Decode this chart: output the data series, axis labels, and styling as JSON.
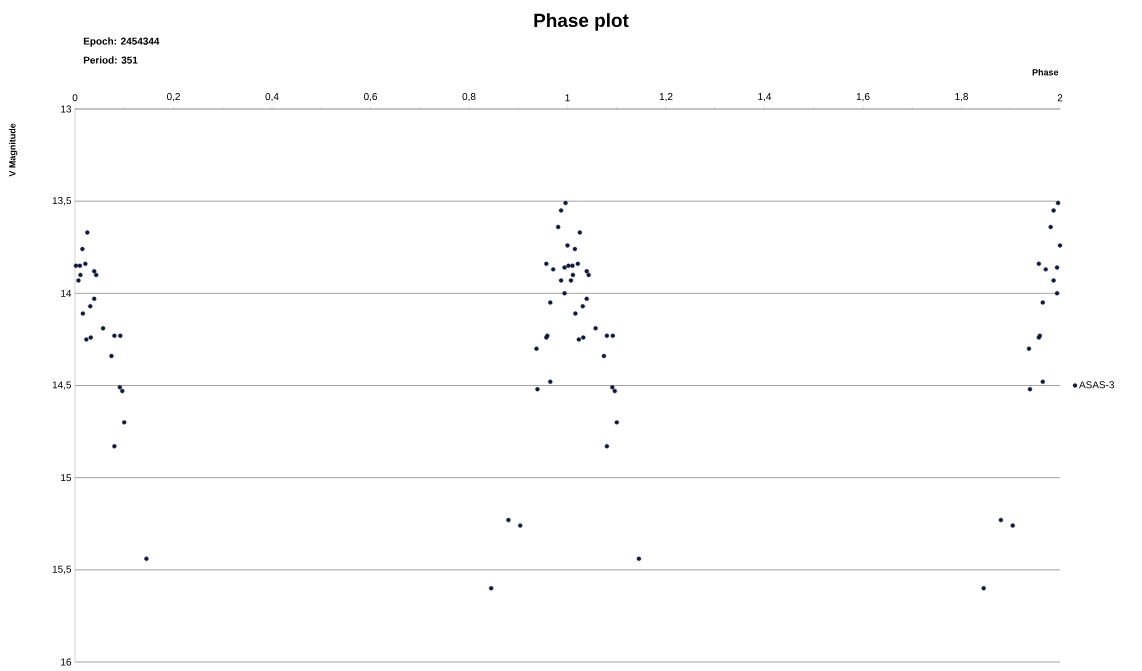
{
  "chart_data": {
    "type": "scatter",
    "title": "Phase plot",
    "xlabel": "Phase",
    "ylabel": "V Magnitude",
    "annotations": [
      "Epoch: 2454344",
      "Period: 351"
    ],
    "series": [
      {
        "name": "ASAS-3",
        "color": "#0d1b3e",
        "x": [
          0.025,
          0.015,
          0.021,
          0.002,
          0.01,
          0.011,
          0.007,
          0.039,
          0.043,
          0.039,
          0.031,
          0.016,
          0.057,
          0.08,
          0.092,
          0.023,
          0.032,
          0.074,
          0.091,
          0.096,
          0.1,
          0.08,
          0.145,
          0.996,
          0.987,
          0.981,
          1.0,
          0.957,
          0.971,
          0.994,
          0.987,
          0.994,
          0.965,
          0.957,
          0.959,
          0.937,
          0.965,
          0.939,
          0.88,
          0.904,
          0.845,
          1.025,
          1.015,
          1.021,
          1.002,
          1.01,
          1.011,
          1.007,
          1.039,
          1.043,
          1.039,
          1.031,
          1.016,
          1.057,
          1.08,
          1.092,
          1.023,
          1.032,
          1.074,
          1.091,
          1.096,
          1.1,
          1.08,
          1.145,
          1.996,
          1.987,
          1.981,
          2.0,
          1.957,
          1.971,
          1.994,
          1.987,
          1.994,
          1.965,
          1.957,
          1.959,
          1.937,
          1.965,
          1.939,
          1.88,
          1.904,
          1.845
        ],
        "values": [
          13.67,
          13.76,
          13.84,
          13.85,
          13.85,
          13.9,
          13.93,
          13.88,
          13.9,
          14.03,
          14.07,
          14.11,
          14.19,
          14.23,
          14.23,
          14.25,
          14.24,
          14.34,
          14.51,
          14.53,
          14.7,
          14.83,
          15.44,
          13.51,
          13.55,
          13.64,
          13.74,
          13.84,
          13.87,
          13.86,
          13.93,
          14.0,
          14.05,
          14.24,
          14.23,
          14.3,
          14.48,
          14.52,
          15.23,
          15.26,
          15.6,
          13.67,
          13.76,
          13.84,
          13.85,
          13.85,
          13.9,
          13.93,
          13.88,
          13.9,
          14.03,
          14.07,
          14.11,
          14.19,
          14.23,
          14.23,
          14.25,
          14.24,
          14.34,
          14.51,
          14.53,
          14.7,
          14.83,
          15.44,
          13.51,
          13.55,
          13.64,
          13.74,
          13.84,
          13.87,
          13.86,
          13.93,
          14.0,
          14.05,
          14.24,
          14.23,
          14.3,
          14.48,
          14.52,
          15.23,
          15.26,
          15.6
        ]
      }
    ],
    "xlim": [
      0,
      2
    ],
    "xticks": [
      0,
      {
        "value": 0.2,
        "label": "0,2"
      },
      {
        "value": 0.4,
        "label": "0,4"
      },
      {
        "value": 0.6,
        "label": "0,6"
      },
      {
        "value": 0.8,
        "label": "0,8"
      },
      1,
      {
        "value": 1.2,
        "label": "1,2"
      },
      {
        "value": 1.4,
        "label": "1,4"
      },
      {
        "value": 1.6,
        "label": "1,6"
      },
      {
        "value": 1.8,
        "label": "1,8"
      },
      2
    ],
    "ylim": [
      16,
      13
    ],
    "yticks": [
      13,
      {
        "value": 13.5,
        "label": "13,5"
      },
      14,
      {
        "value": 14.5,
        "label": "14,5"
      },
      15,
      {
        "value": 15.5,
        "label": "15,5"
      },
      16
    ],
    "grid": "y",
    "legend": "right",
    "marker": "circle"
  }
}
